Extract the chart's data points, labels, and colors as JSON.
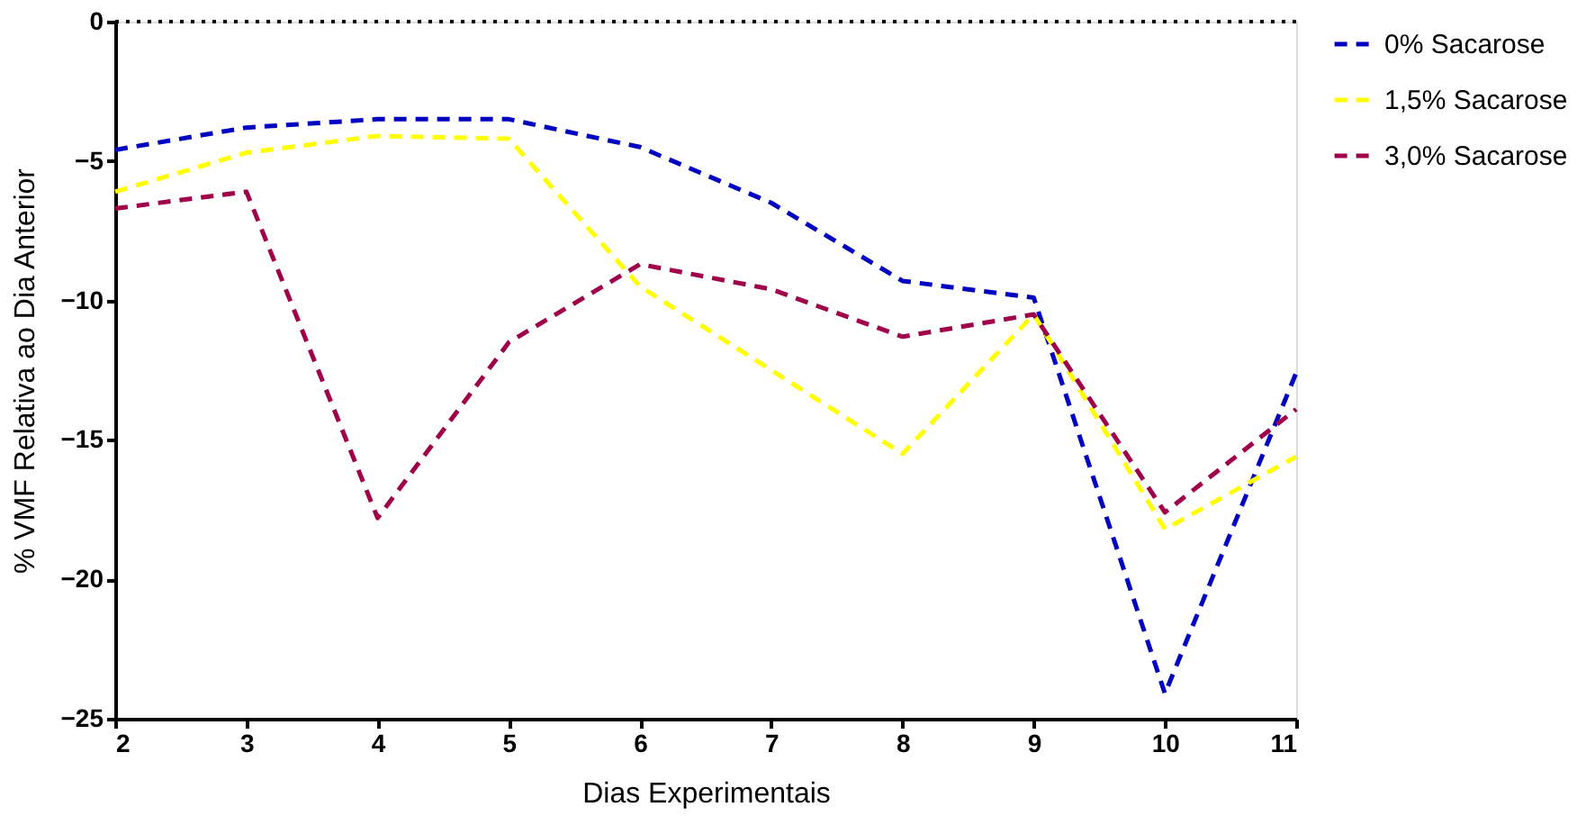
{
  "chart_data": {
    "type": "line",
    "xlabel": "Dias Experimentais",
    "ylabel": "% VMF Relativa ao Dia Anterior",
    "x": [
      2,
      3,
      4,
      5,
      6,
      7,
      8,
      9,
      10,
      11
    ],
    "series": [
      {
        "name": "0% Sacarose",
        "color": "#0000c0",
        "line_style": "dashed",
        "values": [
          -4.6,
          -3.8,
          -3.5,
          -3.5,
          -4.5,
          -6.5,
          -9.3,
          -9.9,
          -24.1,
          -12.6
        ]
      },
      {
        "name": "1,5% Sacarose",
        "color": "#ffff00",
        "line_style": "dashed",
        "values": [
          -6.1,
          -4.7,
          -4.1,
          -4.2,
          -9.5,
          -12.5,
          -15.5,
          -10.5,
          -18.2,
          -15.6
        ]
      },
      {
        "name": "3,0% Sacarose",
        "color": "#a0004a",
        "line_style": "dashed",
        "values": [
          -6.7,
          -6.1,
          -17.8,
          -11.5,
          -8.7,
          -9.6,
          -11.3,
          -10.5,
          -17.6,
          -13.9
        ]
      }
    ],
    "xlim": [
      2,
      11
    ],
    "xticks": [
      2,
      3,
      4,
      5,
      6,
      7,
      8,
      9,
      10,
      11
    ],
    "ylim": [
      -25,
      0
    ],
    "yticks": [
      -25,
      -20,
      -15,
      -10,
      -5,
      0
    ],
    "ref_lines": [
      {
        "axis": "y",
        "value": 0,
        "color": "#000000",
        "line_style": "dotted"
      }
    ],
    "grid": false,
    "legend": "right",
    "marker": "none"
  }
}
